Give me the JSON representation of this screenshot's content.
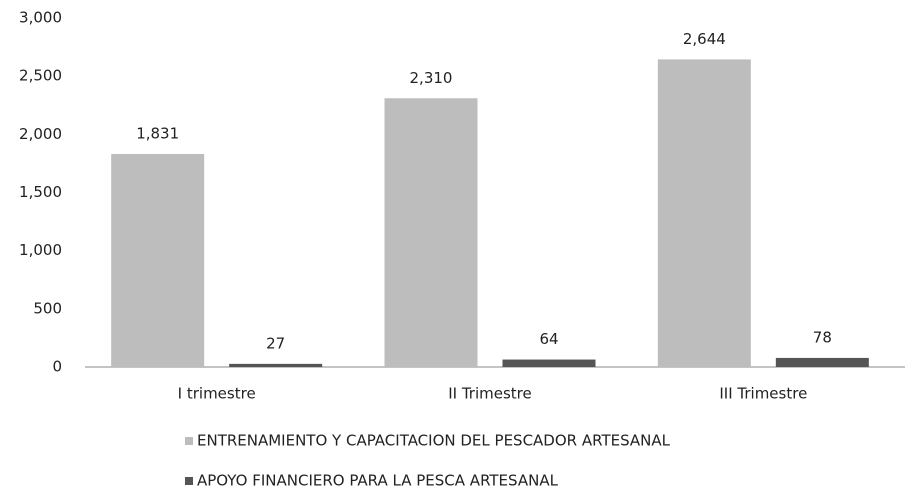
{
  "chart_data": {
    "type": "bar",
    "categories": [
      "I trimestre",
      "II Trimestre",
      "III Trimestre"
    ],
    "series": [
      {
        "name": "ENTRENAMIENTO Y CAPACITACION DEL PESCADOR ARTESANAL",
        "color": "#bdbdbd",
        "values": [
          1831,
          2310,
          2644
        ],
        "value_labels": [
          "1,831",
          "2,310",
          "2,644"
        ]
      },
      {
        "name": "APOYO FINANCIERO PARA LA PESCA ARTESANAL",
        "color": "#555555",
        "values": [
          27,
          64,
          78
        ]
      }
    ],
    "ylim": [
      0,
      3000
    ],
    "yticks": [
      0,
      500,
      {
        "value": 1000,
        "label": "1,000"
      },
      {
        "value": 1500,
        "label": "1,500"
      },
      {
        "value": 2000,
        "label": "2,000"
      },
      {
        "value": 2500,
        "label": "2,500"
      },
      {
        "value": 3000,
        "label": "3,000"
      }
    ],
    "grid": false,
    "legend": "bottom"
  }
}
